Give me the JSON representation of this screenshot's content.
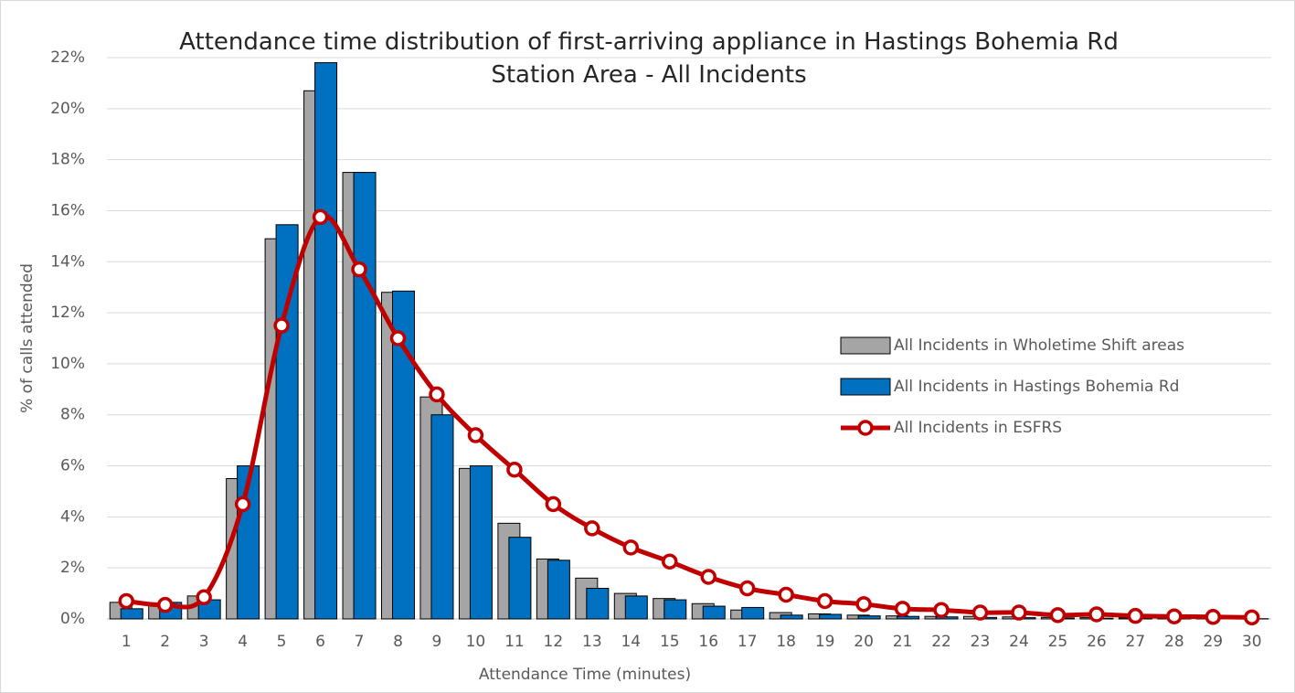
{
  "chart_data": {
    "type": "bar",
    "title": "Attendance time distribution of first-arriving appliance in Hastings Bohemia Rd Station Area - All Incidents",
    "x_label": "Attendance Time (minutes)",
    "y_label": "% of calls attended",
    "categories": [
      "1",
      "2",
      "3",
      "4",
      "5",
      "6",
      "7",
      "8",
      "9",
      "10",
      "11",
      "12",
      "13",
      "14",
      "15",
      "16",
      "17",
      "18",
      "19",
      "20",
      "21",
      "22",
      "23",
      "24",
      "25",
      "26",
      "27",
      "28",
      "29",
      "30"
    ],
    "series": [
      {
        "name": "All Incidents in Wholetime Shift areas",
        "type": "bar",
        "color": "#a5a5a5",
        "values": [
          0.65,
          0.6,
          0.9,
          5.5,
          14.9,
          20.7,
          17.5,
          12.8,
          8.7,
          5.9,
          3.75,
          2.35,
          1.6,
          1.0,
          0.8,
          0.6,
          0.35,
          0.25,
          0.2,
          0.15,
          0.12,
          0.1,
          0.1,
          0.08,
          0.06,
          0.05,
          0.04,
          0.03,
          0.02,
          0.02
        ]
      },
      {
        "name": "All Incidents in Hastings Bohemia Rd",
        "type": "bar",
        "color": "#0070c0",
        "values": [
          0.4,
          0.65,
          0.75,
          6.0,
          15.45,
          21.8,
          17.5,
          12.85,
          8.0,
          6.0,
          3.2,
          2.3,
          1.2,
          0.9,
          0.75,
          0.5,
          0.45,
          0.15,
          0.18,
          0.12,
          0.1,
          0.08,
          0.06,
          0.05,
          0.04,
          0.03,
          0.03,
          0.02,
          0.01,
          0.01
        ]
      },
      {
        "name": "All Incidents in ESFRS",
        "type": "line",
        "color": "#c00000",
        "values": [
          0.7,
          0.55,
          0.85,
          4.5,
          11.5,
          15.75,
          13.7,
          11.0,
          8.8,
          7.2,
          5.85,
          4.5,
          3.55,
          2.8,
          2.25,
          1.65,
          1.2,
          0.95,
          0.7,
          0.58,
          0.4,
          0.35,
          0.25,
          0.25,
          0.15,
          0.18,
          0.12,
          0.1,
          0.08,
          0.06
        ]
      }
    ],
    "ylim": [
      0,
      22
    ],
    "yticks": [
      {
        "value": 0,
        "label": "0%"
      },
      {
        "value": 2,
        "label": "2%"
      },
      {
        "value": 4,
        "label": "4%"
      },
      {
        "value": 6,
        "label": "6%"
      },
      {
        "value": 8,
        "label": "8%"
      },
      {
        "value": 10,
        "label": "10%"
      },
      {
        "value": 12,
        "label": "12%"
      },
      {
        "value": 14,
        "label": "14%"
      },
      {
        "value": 16,
        "label": "16%"
      },
      {
        "value": 18,
        "label": "18%"
      },
      {
        "value": 20,
        "label": "20%"
      },
      {
        "value": 22,
        "label": "22%"
      }
    ],
    "grid": true,
    "legend": "right"
  }
}
